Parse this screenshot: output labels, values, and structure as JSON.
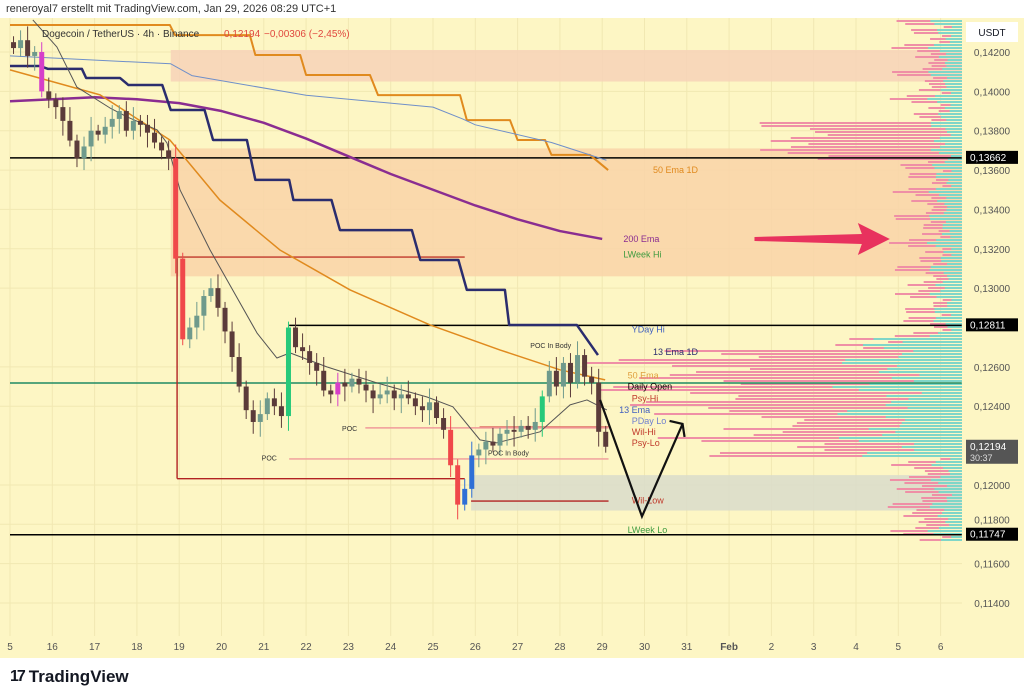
{
  "credit": "reneroyal7 erstellt mit TradingView.com, Jan 29, 2026 08:29 UTC+1",
  "brand": "TradingView",
  "legend": {
    "symbol": "Dogecoin / TetherUS · 4h · Binance",
    "last": "0,12194",
    "change": "−0,00306 (−2,45%)"
  },
  "colors": {
    "background": "#fdf6c4",
    "up": "#6f9a8c",
    "down": "#5b3b3a",
    "level": "#000000",
    "daily_open": "#1f8a63",
    "zone": "#f9d3b0",
    "grey_zone": "#d9dccb",
    "pink_arrow": "#e8325e"
  },
  "chart_data": {
    "type": "candlestick",
    "title": "",
    "currency": "USDT",
    "x_ticks": [
      "5",
      "16",
      "17",
      "18",
      "19",
      "20",
      "21",
      "22",
      "23",
      "24",
      "25",
      "26",
      "27",
      "28",
      "29",
      "30",
      "31",
      "Feb",
      "2",
      "3",
      "4",
      "5",
      "6"
    ],
    "y_ticks": [
      "0,14200",
      "0,14000",
      "0,13800",
      "0,13600",
      "0,13400",
      "0,13200",
      "0,13000",
      "0,12600",
      "0,12400",
      "0,12000",
      "0,11800",
      "0,11600",
      "0,11400"
    ],
    "ylim": [
      0.1131,
      0.1447
    ],
    "x_range_days_from_jan15": [
      0,
      22.5
    ],
    "candle_interval": "4h",
    "closes": [
      0.1422,
      0.1426,
      0.1418,
      0.142,
      0.14,
      0.1396,
      0.1392,
      0.1385,
      0.1375,
      0.1366,
      0.1372,
      0.138,
      0.1378,
      0.1382,
      0.1386,
      0.139,
      0.138,
      0.1385,
      0.1383,
      0.1379,
      0.1374,
      0.137,
      0.1366,
      0.1315,
      0.1274,
      0.128,
      0.1286,
      0.1296,
      0.13,
      0.129,
      0.1278,
      0.1265,
      0.125,
      0.1238,
      0.1232,
      0.1236,
      0.1244,
      0.124,
      0.1235,
      0.128,
      0.127,
      0.1268,
      0.1262,
      0.1258,
      0.1248,
      0.1246,
      0.1252,
      0.125,
      0.1254,
      0.1251,
      0.1248,
      0.1244,
      0.1246,
      0.1248,
      0.1244,
      0.1246,
      0.1244,
      0.124,
      0.1238,
      0.1242,
      0.1234,
      0.1228,
      0.121,
      0.119,
      0.1198,
      0.1215,
      0.1218,
      0.1222,
      0.122,
      0.1226,
      0.1228,
      0.1227,
      0.123,
      0.1228,
      0.1232,
      0.1245,
      0.1258,
      0.125,
      0.1262,
      0.1252,
      0.1266,
      0.1255,
      0.1252,
      0.1227,
      0.12194
    ],
    "candle_colors": {
      "4": "#d63fc9",
      "23": "#f0484a",
      "24": "#f0484a",
      "39": "#27c97a",
      "46": "#d63fc9",
      "62": "#f0484a",
      "63": "#f0484a",
      "64": "#2f6fd6",
      "65": "#2f6fd6",
      "75": "#27c97a"
    },
    "price_badges": [
      {
        "label": "0,13662",
        "price": 0.13662,
        "style": "black"
      },
      {
        "label": "0,12811",
        "price": 0.12811,
        "style": "black"
      },
      {
        "label": "0,12194",
        "sub": "30:37",
        "price": 0.12194,
        "style": "grey"
      },
      {
        "label": "0,11747",
        "price": 0.11747,
        "style": "black"
      }
    ],
    "levels": [
      {
        "price": 0.13662,
        "color": "#000000",
        "from": 0,
        "to": 22.5
      },
      {
        "price": 0.12811,
        "color": "#000000",
        "from": 6.6,
        "to": 22.5
      },
      {
        "price": 0.11747,
        "color": "#000000",
        "from": 0,
        "to": 22.5
      },
      {
        "price": 0.12518,
        "color": "#1f8a63",
        "from": 0,
        "to": 22.5
      }
    ],
    "zones": [
      {
        "top": 0.1421,
        "bottom": 0.1405,
        "from": 3.8,
        "to": 22.5,
        "color": "#f7d2b8"
      },
      {
        "top": 0.1371,
        "bottom": 0.1306,
        "from": 3.8,
        "to": 22.5,
        "color": "#f9d3a8"
      },
      {
        "top": 0.1205,
        "bottom": 0.1187,
        "from": 10.9,
        "to": 22.5,
        "color": "#d9dccb"
      }
    ],
    "series": [
      {
        "name": "50 Ema 1D",
        "color": "#e08a1e",
        "width": 2,
        "points": [
          [
            0,
            0.14337
          ],
          [
            3.78,
            0.14337
          ],
          [
            3.9,
            0.14286
          ],
          [
            5.67,
            0.14286
          ],
          [
            5.8,
            0.14185
          ],
          [
            6.86,
            0.14185
          ],
          [
            7.0,
            0.14083
          ],
          [
            8.51,
            0.14083
          ],
          [
            8.7,
            0.13981
          ],
          [
            10.64,
            0.13981
          ],
          [
            10.8,
            0.13854
          ],
          [
            11.82,
            0.13854
          ],
          [
            12.0,
            0.13753
          ],
          [
            12.65,
            0.13753
          ],
          [
            12.8,
            0.13677
          ],
          [
            13.71,
            0.13677
          ],
          [
            14.14,
            0.136
          ]
        ]
      },
      {
        "name": "",
        "color": "#6f8fc9",
        "width": 1,
        "points": [
          [
            0,
            0.1418
          ],
          [
            3.8,
            0.1414
          ],
          [
            4.3,
            0.1408
          ],
          [
            7,
            0.1398
          ],
          [
            10,
            0.1392
          ],
          [
            10.7,
            0.1386
          ],
          [
            11,
            0.1383
          ],
          [
            12.8,
            0.1374
          ],
          [
            14.1,
            0.1365
          ]
        ]
      },
      {
        "name": "200 Ema",
        "color": "#8a2d91",
        "width": 2.5,
        "points": [
          [
            0,
            0.1395
          ],
          [
            2,
            0.1397
          ],
          [
            3,
            0.1396
          ],
          [
            4,
            0.1394
          ],
          [
            5,
            0.139
          ],
          [
            6,
            0.1384
          ],
          [
            7,
            0.1376
          ],
          [
            8,
            0.1367
          ],
          [
            9,
            0.1358
          ],
          [
            10,
            0.135
          ],
          [
            11,
            0.1342
          ],
          [
            12,
            0.1335
          ],
          [
            13,
            0.1329
          ],
          [
            14,
            0.1325
          ]
        ]
      },
      {
        "name": "13 Ema 1D",
        "color": "#2b2d6e",
        "width": 2.5,
        "points": [
          [
            0,
            0.14129
          ],
          [
            0.7,
            0.14129
          ],
          [
            0.9,
            0.14114
          ],
          [
            1.7,
            0.14114
          ],
          [
            1.8,
            0.14068
          ],
          [
            2.6,
            0.14068
          ],
          [
            2.8,
            0.14032
          ],
          [
            3.6,
            0.14032
          ],
          [
            3.8,
            0.13905
          ],
          [
            4.6,
            0.13905
          ],
          [
            4.8,
            0.13753
          ],
          [
            5.6,
            0.13753
          ],
          [
            5.8,
            0.1355
          ],
          [
            6.6,
            0.1355
          ],
          [
            6.7,
            0.13448
          ],
          [
            7.6,
            0.13448
          ],
          [
            7.8,
            0.13295
          ],
          [
            9.5,
            0.13295
          ],
          [
            9.7,
            0.13143
          ],
          [
            10.6,
            0.13143
          ],
          [
            10.8,
            0.12991
          ],
          [
            11.7,
            0.12991
          ],
          [
            11.8,
            0.12813
          ],
          [
            13.4,
            0.12813
          ],
          [
            13.9,
            0.1266
          ]
        ]
      },
      {
        "name": "50 Ema",
        "color": "#e08a1e",
        "width": 1.5,
        "points": [
          [
            0,
            0.14109
          ],
          [
            2.13,
            0.13982
          ],
          [
            3.78,
            0.13753
          ],
          [
            4.96,
            0.13448
          ],
          [
            6.38,
            0.13194
          ],
          [
            8.04,
            0.12991
          ],
          [
            9.93,
            0.12813
          ],
          [
            11.58,
            0.12686
          ],
          [
            13.0,
            0.12585
          ],
          [
            14.07,
            0.12534
          ]
        ]
      },
      {
        "name": "13 Ema",
        "color": "#555555",
        "width": 1,
        "points": [
          [
            0.54,
            0.14363
          ],
          [
            1.11,
            0.14225
          ],
          [
            1.58,
            0.14022
          ],
          [
            2.36,
            0.13916
          ],
          [
            2.77,
            0.1387
          ],
          [
            3.48,
            0.13804
          ],
          [
            3.71,
            0.13738
          ],
          [
            4.02,
            0.13499
          ],
          [
            4.73,
            0.13194
          ],
          [
            5.84,
            0.12772
          ],
          [
            6.31,
            0.12645
          ],
          [
            6.62,
            0.12671
          ],
          [
            7.49,
            0.126
          ],
          [
            8.68,
            0.12518
          ],
          [
            9.86,
            0.12447
          ],
          [
            10.47,
            0.12397
          ],
          [
            11.11,
            0.12229
          ],
          [
            11.51,
            0.12214
          ],
          [
            12.53,
            0.1227
          ],
          [
            13.24,
            0.12407
          ],
          [
            13.64,
            0.12432
          ],
          [
            14.11,
            0.12381
          ]
        ]
      }
    ],
    "red_lines": [
      {
        "price": 0.13158,
        "from": 3.95,
        "to": 10.75,
        "color": "#c0392b"
      },
      {
        "price": 0.12032,
        "from": 3.95,
        "to": 10.75,
        "color": "#b22222",
        "vertical_from": 0.13158
      },
      {
        "price": 0.12294,
        "from": 11.1,
        "to": 14.15,
        "color": "#d9534f"
      },
      {
        "price": 0.11918,
        "from": 10.9,
        "to": 14.15,
        "color": "#b22222"
      },
      {
        "price": 0.1229,
        "from": 8.4,
        "to": 14.15,
        "color": "#f09a9a"
      },
      {
        "price": 0.12132,
        "from": 6.6,
        "to": 14.15,
        "color": "#f09a9a"
      }
    ],
    "annotations": [
      {
        "text": "50 Ema 1D",
        "t": 15.2,
        "price": 0.136,
        "color": "#e08a1e"
      },
      {
        "text": "200 Ema",
        "t": 14.5,
        "price": 0.1325,
        "color": "#8a2d91"
      },
      {
        "text": "LWeek Hi",
        "t": 14.5,
        "price": 0.1317,
        "color": "#3f9b3f"
      },
      {
        "text": "YDay Hi",
        "t": 14.7,
        "price": 0.1279,
        "color": "#3f5fbf"
      },
      {
        "text": "13 Ema 1D",
        "t": 15.2,
        "price": 0.12675,
        "color": "#2b2d6e"
      },
      {
        "text": "50 Ema",
        "t": 14.6,
        "price": 0.12555,
        "color": "#e0a040"
      },
      {
        "text": "Daily Open",
        "t": 14.6,
        "price": 0.125,
        "color": "#000000"
      },
      {
        "text": "Psy-Hi",
        "t": 14.7,
        "price": 0.1244,
        "color": "#c0392b"
      },
      {
        "text": "13 Ema",
        "t": 14.4,
        "price": 0.1238,
        "color": "#3f5fbf"
      },
      {
        "text": "PDay Lo",
        "t": 14.7,
        "price": 0.12375,
        "color": "#6f7fcf"
      },
      {
        "text": "Wil-Hi",
        "t": 14.7,
        "price": 0.123,
        "color": "#c0392b"
      },
      {
        "text": "Psy-Lo",
        "t": 14.7,
        "price": 0.1227,
        "color": "#c0392b"
      },
      {
        "text": "Wil-Low",
        "t": 14.7,
        "price": 0.1192,
        "color": "#c0392b"
      },
      {
        "text": "LWeek Lo",
        "t": 14.6,
        "price": 0.1177,
        "color": "#3f9b3f"
      },
      {
        "text": "POC In Body",
        "t": 12.3,
        "price": 0.1271,
        "color": "#333333"
      },
      {
        "text": "POC In Body",
        "t": 11.3,
        "price": 0.12165,
        "color": "#333333"
      },
      {
        "text": "POC",
        "t": 7.85,
        "price": 0.1229,
        "color": "#333333"
      },
      {
        "text": "POC",
        "t": 5.95,
        "price": 0.1214,
        "color": "#333333"
      }
    ],
    "projection_path": [
      [
        13.95,
        0.12432
      ],
      [
        14.94,
        0.1184
      ],
      [
        15.9,
        0.1231
      ]
    ],
    "pink_arrow": {
      "from": 17.6,
      "to": 20.8,
      "price": 0.1325
    }
  }
}
